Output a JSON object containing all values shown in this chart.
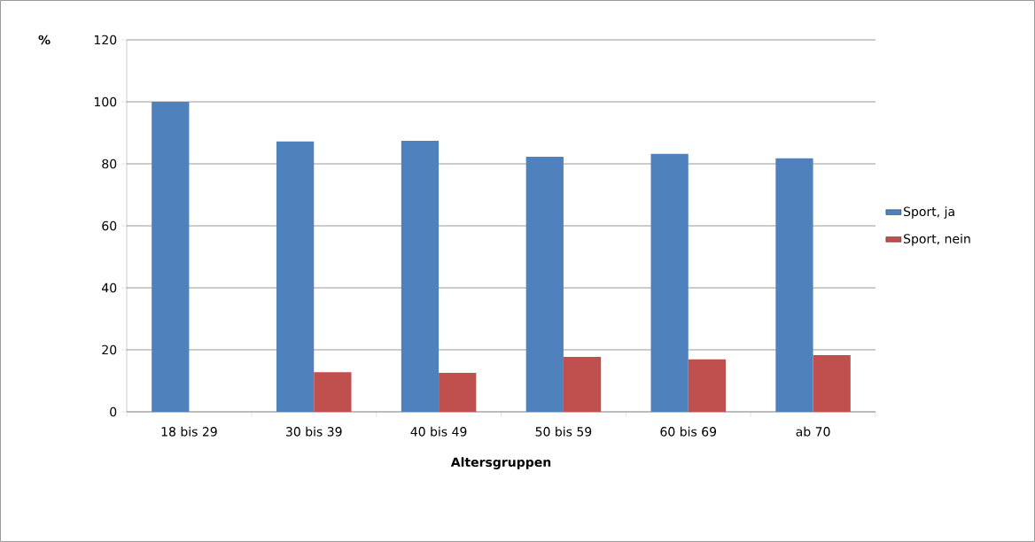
{
  "chart_data": {
    "type": "bar",
    "ylabel": "%",
    "xlabel": "Altersgruppen",
    "categories": [
      "18 bis 29",
      "30 bis 39",
      "40 bis 49",
      "50 bis 59",
      "60 bis 69",
      "ab 70"
    ],
    "series": [
      {
        "name": "Sport, ja",
        "color": "#4f81bd",
        "values": [
          100,
          87.2,
          87.4,
          82.3,
          83.2,
          81.8
        ]
      },
      {
        "name": "Sport, nein",
        "color": "#c0504d",
        "values": [
          0,
          12.8,
          12.6,
          17.7,
          16.9,
          18.3
        ]
      }
    ],
    "ylim": [
      0,
      120
    ],
    "yticks": [
      0,
      20,
      40,
      60,
      80,
      100,
      120
    ],
    "grid": "y",
    "legend": "right"
  }
}
